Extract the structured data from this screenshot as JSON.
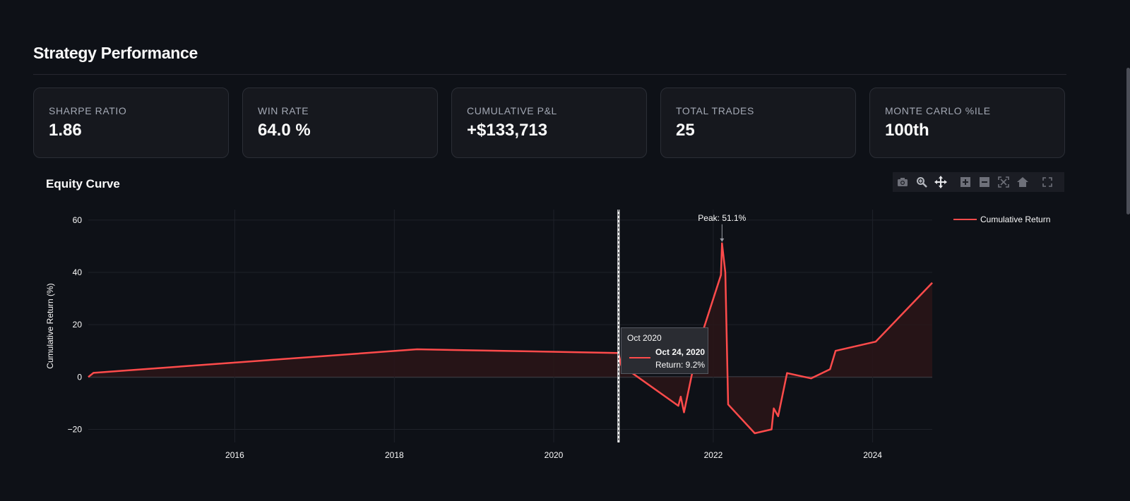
{
  "page": {
    "title": "Strategy Performance"
  },
  "metrics": [
    {
      "label": "SHARPE RATIO",
      "value": "1.86"
    },
    {
      "label": "WIN RATE",
      "value": "64.0 %"
    },
    {
      "label": "CUMULATIVE P&L",
      "value": "+$133,713"
    },
    {
      "label": "TOTAL TRADES",
      "value": "25"
    },
    {
      "label": "MONTE CARLO %ILE",
      "value": "100th"
    }
  ],
  "chart": {
    "title": "Equity Curve",
    "modebar": [
      "camera-icon",
      "zoom-icon",
      "pan-icon",
      "zoom-in-icon",
      "zoom-out-icon",
      "autoscale-icon",
      "reset-axes-icon",
      "fullscreen-icon"
    ],
    "tooltip": {
      "header": "Oct 2020",
      "date": "Oct 24, 2020",
      "value": "Return: 9.2%"
    },
    "peak_annotation": "Peak: 51.1%"
  },
  "chart_data": {
    "type": "area",
    "title": "",
    "xlabel": "",
    "ylabel": "Cumulative Return (%)",
    "xlim": [
      "2014-03-01",
      "2024-09-30"
    ],
    "ylim": [
      -25,
      64
    ],
    "x_ticks": [
      "2016",
      "2018",
      "2020",
      "2022",
      "2024"
    ],
    "y_ticks": [
      -20,
      0,
      20,
      40,
      60
    ],
    "grid": true,
    "legend_position": "top-right",
    "colors": {
      "line": "#ff4b4b",
      "fill": "#2a1518",
      "background": "#0e1117",
      "grid": "#1f222a",
      "zero_line": "#3a3d45"
    },
    "series": [
      {
        "name": "Cumulative Return",
        "x": [
          "2014-03-01",
          "2014-03-25",
          "2018-04-15",
          "2020-10-20",
          "2020-10-24",
          "2020-11-05",
          "2021-07-25",
          "2021-08-05",
          "2021-08-20",
          "2021-10-20",
          "2022-02-05",
          "2022-02-10",
          "2022-02-25",
          "2022-03-10",
          "2022-07-10",
          "2022-09-25",
          "2022-10-05",
          "2022-10-25",
          "2022-12-05",
          "2023-03-25",
          "2023-06-20",
          "2023-07-15",
          "2024-01-15",
          "2024-09-30"
        ],
        "y": [
          0.0,
          1.6,
          10.6,
          9.2,
          9.2,
          4.5,
          -11.0,
          -7.5,
          -13.5,
          11.0,
          39.0,
          51.1,
          40.0,
          -10.5,
          -21.5,
          -20.0,
          -12.0,
          -15.0,
          1.5,
          -0.5,
          3.0,
          10.0,
          13.5,
          36.0
        ]
      }
    ],
    "hover_x": "2020-10-24",
    "peak": {
      "x": "2022-02-10",
      "y": 51.1,
      "label": "Peak: 51.1%"
    }
  }
}
